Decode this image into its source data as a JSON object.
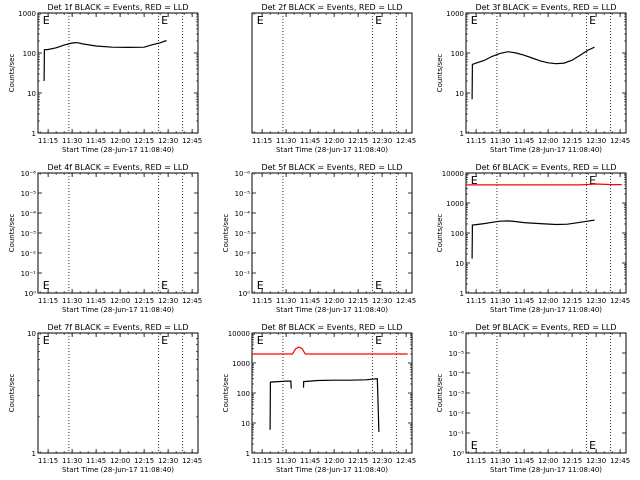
{
  "chart_data": [
    {
      "type": "line",
      "title": "Det 1f BLACK = Events, RED = LLD",
      "xlabel": "Start Time (28-Jun-17 11:08:40)",
      "ylabel": "Counts/sec",
      "x_ticks": [
        "11:15",
        "11:30",
        "11:45",
        "12:00",
        "12:15",
        "12:30",
        "12:45"
      ],
      "y_ticks": [
        "1",
        "10",
        "100",
        "1000"
      ],
      "y_scale": "log",
      "ylim": [
        1,
        1000
      ],
      "xlim": [
        "11:08:40",
        "12:48:40"
      ],
      "vlines": [
        "11:28:00",
        "12:24:00",
        "12:39:00"
      ],
      "markers": [
        {
          "text": "E",
          "x": "11:11:00"
        },
        {
          "text": "E",
          "x": "12:25:00"
        }
      ],
      "series": [
        {
          "color": "#000000",
          "points": [
            [
              "11:12:30",
              20
            ],
            [
              "11:12:40",
              120
            ],
            [
              "11:15",
              122
            ],
            [
              "11:20",
              135
            ],
            [
              "11:25",
              158
            ],
            [
              "11:30",
              178
            ],
            [
              "11:33",
              182
            ],
            [
              "11:37",
              168
            ],
            [
              "11:45",
              150
            ],
            [
              "11:55",
              140
            ],
            [
              "12:05",
              138
            ],
            [
              "12:15",
              140
            ],
            [
              "12:20",
              160
            ],
            [
              "12:25",
              180
            ],
            [
              "12:29",
              205
            ]
          ]
        }
      ]
    },
    {
      "type": "line",
      "title": "Det 2f BLACK = Events, RED = LLD",
      "xlabel": "Start Time (28-Jun-17 11:08:40)",
      "ylabel": "",
      "x_ticks": [
        "11:15",
        "11:30",
        "11:45",
        "12:00",
        "12:15",
        "12:30",
        "12:45"
      ],
      "y_ticks": [],
      "xlim": [
        "11:08:40",
        "12:48:40"
      ],
      "vlines": [
        "11:28:00",
        "12:24:00",
        "12:39:00"
      ],
      "markers": [
        {
          "text": "E",
          "x": "11:11:00"
        },
        {
          "text": "E",
          "x": "12:25:00"
        }
      ],
      "series": []
    },
    {
      "type": "line",
      "title": "Det 3f BLACK = Events, RED = LLD",
      "xlabel": "Start Time (28-Jun-17 11:08:40)",
      "ylabel": "Counts/sec",
      "x_ticks": [
        "11:15",
        "11:30",
        "11:45",
        "12:00",
        "12:15",
        "12:30",
        "12:45"
      ],
      "y_ticks": [
        "1",
        "10",
        "100",
        "1000"
      ],
      "y_scale": "log",
      "ylim": [
        1,
        1000
      ],
      "xlim": [
        "11:08:40",
        "12:48:40"
      ],
      "vlines": [
        "11:28:00",
        "12:24:00",
        "12:39:00"
      ],
      "markers": [
        {
          "text": "E",
          "x": "11:11:00"
        },
        {
          "text": "E",
          "x": "12:25:00"
        }
      ],
      "series": [
        {
          "color": "#000000",
          "points": [
            [
              "11:12:30",
              7
            ],
            [
              "11:12:40",
              52
            ],
            [
              "11:15",
              56
            ],
            [
              "11:20",
              65
            ],
            [
              "11:25",
              82
            ],
            [
              "11:30",
              98
            ],
            [
              "11:35",
              108
            ],
            [
              "11:40",
              100
            ],
            [
              "11:45",
              88
            ],
            [
              "11:50",
              75
            ],
            [
              "11:55",
              64
            ],
            [
              "12:00",
              57
            ],
            [
              "12:05",
              54
            ],
            [
              "12:10",
              56
            ],
            [
              "12:15",
              66
            ],
            [
              "12:20",
              88
            ],
            [
              "12:25",
              118
            ],
            [
              "12:29",
              140
            ]
          ]
        }
      ]
    },
    {
      "type": "line",
      "title": "Det 4f BLACK = Events, RED = LLD",
      "xlabel": "Start Time (28-Jun-17 11:08:40)",
      "ylabel": "Counts/sec",
      "x_ticks": [
        "11:15",
        "11:30",
        "11:45",
        "12:00",
        "12:15",
        "12:30",
        "12:45"
      ],
      "y_ticks": [
        "10⁰",
        "10⁻¹",
        "10⁻²",
        "10⁻³",
        "10⁻⁴",
        "10⁻⁵",
        "10⁻⁶"
      ],
      "xlim": [
        "11:08:40",
        "12:48:40"
      ],
      "vlines": [
        "11:28:00",
        "12:24:00",
        "12:39:00"
      ],
      "markers": [
        {
          "text": "E",
          "x": "11:11:00",
          "pos": "bottom"
        },
        {
          "text": "E",
          "x": "12:25:00",
          "pos": "bottom"
        }
      ],
      "series": []
    },
    {
      "type": "line",
      "title": "Det 5f BLACK = Events, RED = LLD",
      "xlabel": "Start Time (28-Jun-17 11:08:40)",
      "ylabel": "Counts/sec",
      "x_ticks": [
        "11:15",
        "11:30",
        "11:45",
        "12:00",
        "12:15",
        "12:30",
        "12:45"
      ],
      "y_ticks": [
        "10⁰",
        "10⁻¹",
        "10⁻²",
        "10⁻³",
        "10⁻⁴",
        "10⁻⁵",
        "10⁻⁶"
      ],
      "xlim": [
        "11:08:40",
        "12:48:40"
      ],
      "vlines": [
        "11:28:00",
        "12:24:00",
        "12:39:00"
      ],
      "markers": [
        {
          "text": "E",
          "x": "11:11:00",
          "pos": "bottom"
        },
        {
          "text": "E",
          "x": "12:25:00",
          "pos": "bottom"
        }
      ],
      "series": []
    },
    {
      "type": "line",
      "title": "Det 6f BLACK = Events, RED = LLD",
      "xlabel": "Start Time (28-Jun-17 11:08:40)",
      "ylabel": "Counts/sec",
      "x_ticks": [
        "11:15",
        "11:30",
        "11:45",
        "12:00",
        "12:15",
        "12:30",
        "12:45"
      ],
      "y_ticks": [
        "1",
        "10",
        "100",
        "1000",
        "10000"
      ],
      "y_scale": "log",
      "ylim": [
        1,
        10000
      ],
      "xlim": [
        "11:08:40",
        "12:48:40"
      ],
      "vlines": [
        "11:28:00",
        "12:24:00",
        "12:39:00"
      ],
      "markers": [
        {
          "text": "E",
          "x": "11:11:00"
        },
        {
          "text": "E",
          "x": "12:25:00"
        }
      ],
      "series": [
        {
          "color": "#ff0000",
          "points": [
            [
              "11:08:40",
              4000
            ],
            [
              "11:30",
              4000
            ],
            [
              "12:00",
              4000
            ],
            [
              "12:20",
              4000
            ],
            [
              "12:30",
              4300
            ],
            [
              "12:40",
              4100
            ],
            [
              "12:46",
              4100
            ]
          ]
        },
        {
          "color": "#000000",
          "points": [
            [
              "11:12:30",
              14
            ],
            [
              "11:12:40",
              185
            ],
            [
              "11:15",
              190
            ],
            [
              "11:20",
              205
            ],
            [
              "11:25",
              228
            ],
            [
              "11:30",
              248
            ],
            [
              "11:35",
              254
            ],
            [
              "11:40",
              240
            ],
            [
              "11:45",
              222
            ],
            [
              "11:55",
              205
            ],
            [
              "12:05",
              192
            ],
            [
              "12:12",
              196
            ],
            [
              "12:18",
              218
            ],
            [
              "12:24",
              245
            ],
            [
              "12:29",
              270
            ]
          ]
        }
      ]
    },
    {
      "type": "line",
      "title": "Det 7f BLACK = Events, RED = LLD",
      "xlabel": "Start Time (28-Jun-17 11:08:40)",
      "ylabel": "Counts/sec",
      "x_ticks": [
        "11:15",
        "11:30",
        "11:45",
        "12:00",
        "12:15",
        "12:30",
        "12:45"
      ],
      "y_ticks": [
        "1",
        "10"
      ],
      "y_scale": "log",
      "ylim": [
        1,
        10
      ],
      "xlim": [
        "11:08:40",
        "12:48:40"
      ],
      "vlines": [
        "11:28:00",
        "12:24:00",
        "12:39:00"
      ],
      "markers": [
        {
          "text": "E",
          "x": "11:11:00"
        },
        {
          "text": "E",
          "x": "12:25:00"
        }
      ],
      "series": []
    },
    {
      "type": "line",
      "title": "Det 8f BLACK = Events, RED = LLD",
      "xlabel": "Start Time (28-Jun-17 11:08:40)",
      "ylabel": "Counts/sec",
      "x_ticks": [
        "11:15",
        "11:30",
        "11:45",
        "12:00",
        "12:15",
        "12:30",
        "12:45"
      ],
      "y_ticks": [
        "1",
        "10",
        "100",
        "1000",
        "10000"
      ],
      "y_scale": "log",
      "ylim": [
        1,
        10000
      ],
      "xlim": [
        "11:08:40",
        "12:48:40"
      ],
      "vlines": [
        "11:28:00",
        "12:24:00",
        "12:39:00"
      ],
      "markers": [
        {
          "text": "E",
          "x": "11:11:00"
        },
        {
          "text": "E",
          "x": "12:25:00"
        }
      ],
      "series": [
        {
          "color": "#ff0000",
          "points": [
            [
              "11:08:40",
              2000
            ],
            [
              "11:34",
              2000
            ],
            [
              "11:36",
              3000
            ],
            [
              "11:38",
              3400
            ],
            [
              "11:40",
              3000
            ],
            [
              "11:42",
              2000
            ],
            [
              "12:00",
              2000
            ],
            [
              "12:30",
              2000
            ],
            [
              "12:46",
              2000
            ]
          ]
        },
        {
          "color": "#000000",
          "points": [
            [
              "11:20:00",
              6
            ],
            [
              "11:20:10",
              230
            ],
            [
              "11:25",
              240
            ],
            [
              "11:30",
              250
            ],
            [
              "11:33",
              250
            ],
            [
              "11:33:10",
              140
            ]
          ]
        },
        {
          "color": "#000000",
          "points": [
            [
              "11:40:50",
              150
            ],
            [
              "11:41",
              240
            ],
            [
              "11:50",
              262
            ],
            [
              "12:00",
              268
            ],
            [
              "12:10",
              268
            ],
            [
              "12:20",
              275
            ],
            [
              "12:27",
              300
            ],
            [
              "12:27:10",
              150
            ],
            [
              "12:28",
              5
            ]
          ]
        }
      ]
    },
    {
      "type": "line",
      "title": "Det 9f BLACK = Events, RED = LLD",
      "xlabel": "Start Time (28-Jun-17 11:08:40)",
      "ylabel": "Counts/sec",
      "x_ticks": [
        "11:15",
        "11:30",
        "11:45",
        "12:00",
        "12:15",
        "12:30",
        "12:45"
      ],
      "y_ticks": [
        "10⁰",
        "10⁻¹",
        "10⁻²",
        "10⁻³",
        "10⁻⁴",
        "10⁻⁵",
        "10⁻⁶"
      ],
      "xlim": [
        "11:08:40",
        "12:48:40"
      ],
      "vlines": [
        "11:28:00",
        "12:24:00",
        "12:39:00"
      ],
      "markers": [
        {
          "text": "E",
          "x": "11:11:00",
          "pos": "bottom"
        },
        {
          "text": "E",
          "x": "12:25:00",
          "pos": "bottom"
        }
      ],
      "series": []
    }
  ]
}
